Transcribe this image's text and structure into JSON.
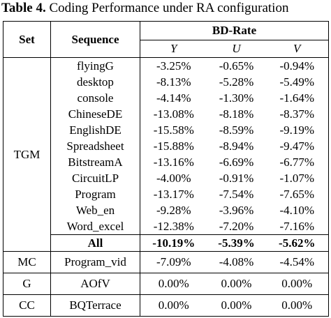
{
  "caption": {
    "label": "Table 4.",
    "text": "Coding Performance under RA configuration"
  },
  "header": {
    "set": "Set",
    "sequence": "Sequence",
    "group": "BD-Rate",
    "components": [
      "Y",
      "U",
      "V"
    ]
  },
  "groups": [
    {
      "set": "TGM",
      "rows": [
        {
          "sequence": "flyingG",
          "values": [
            "-3.25%",
            "-0.65%",
            "-0.94%"
          ]
        },
        {
          "sequence": "desktop",
          "values": [
            "-8.13%",
            "-5.28%",
            "-5.49%"
          ]
        },
        {
          "sequence": "console",
          "values": [
            "-4.14%",
            "-1.30%",
            "-1.64%"
          ]
        },
        {
          "sequence": "ChineseDE",
          "values": [
            "-13.08%",
            "-8.18%",
            "-8.37%"
          ]
        },
        {
          "sequence": "EnglishDE",
          "values": [
            "-15.58%",
            "-8.59%",
            "-9.19%"
          ]
        },
        {
          "sequence": "Spreadsheet",
          "values": [
            "-15.88%",
            "-8.94%",
            "-9.47%"
          ]
        },
        {
          "sequence": "BitstreamA",
          "values": [
            "-13.16%",
            "-6.69%",
            "-6.77%"
          ]
        },
        {
          "sequence": "CircuitLP",
          "values": [
            "-4.00%",
            "-0.91%",
            "-1.07%"
          ]
        },
        {
          "sequence": "Program",
          "values": [
            "-13.17%",
            "-7.54%",
            "-7.65%"
          ]
        },
        {
          "sequence": "Web_en",
          "values": [
            "-9.28%",
            "-3.96%",
            "-4.10%"
          ]
        },
        {
          "sequence": "Word_excel",
          "values": [
            "-12.38%",
            "-7.20%",
            "-7.16%"
          ]
        }
      ],
      "summary": {
        "sequence": "All",
        "values": [
          "-10.19%",
          "-5.39%",
          "-5.62%"
        ]
      }
    },
    {
      "set": "MC",
      "rows": [
        {
          "sequence": "Program_vid",
          "values": [
            "-7.09%",
            "-4.08%",
            "-4.54%"
          ]
        }
      ]
    },
    {
      "set": "G",
      "rows": [
        {
          "sequence": "AOfV",
          "values": [
            "0.00%",
            "0.00%",
            "0.00%"
          ]
        }
      ]
    },
    {
      "set": "CC",
      "rows": [
        {
          "sequence": "BQTerrace",
          "values": [
            "0.00%",
            "0.00%",
            "0.00%"
          ]
        }
      ]
    }
  ]
}
